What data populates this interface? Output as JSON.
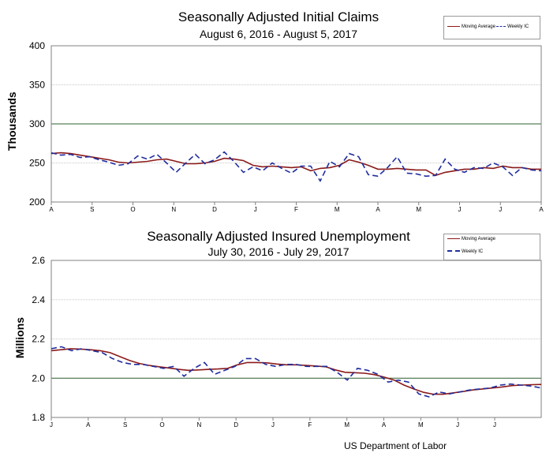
{
  "chart_data": [
    {
      "type": "line",
      "title": "Seasonally Adjusted Initial Claims",
      "subtitle": "August 6, 2016  -  August 5, 2017",
      "ylabel": "Thousands",
      "ylim": [
        200,
        400
      ],
      "yticks": [
        "200",
        "250",
        "300",
        "350",
        "400"
      ],
      "xticks": [
        "A",
        "S",
        "O",
        "N",
        "D",
        "J",
        "F",
        "M",
        "A",
        "M",
        "J",
        "J",
        "A"
      ],
      "legend": {
        "position": "top-right"
      },
      "colors": {
        "moving_average": "#8b1a1a",
        "weekly": "#1f2d9e",
        "grid": "#c8c8c8",
        "ref_line": "#2f5f2f"
      },
      "series": [
        {
          "name": "Moving Average",
          "style": "solid",
          "values": [
            262,
            263,
            262,
            260,
            258,
            256,
            254,
            251,
            250,
            251,
            252,
            254,
            255,
            252,
            249,
            249,
            250,
            252,
            256,
            255,
            253,
            247,
            245,
            246,
            245,
            244,
            245,
            240,
            243,
            244,
            247,
            254,
            251,
            247,
            242,
            242,
            243,
            242,
            241,
            241,
            234,
            238,
            240,
            242,
            242,
            244,
            243,
            246,
            244,
            244,
            242,
            242
          ]
        },
        {
          "name": "Weekly IC",
          "style": "dashed",
          "values": [
            263,
            260,
            261,
            257,
            258,
            254,
            251,
            247,
            249,
            259,
            255,
            261,
            250,
            238,
            250,
            261,
            249,
            254,
            264,
            252,
            238,
            245,
            240,
            250,
            243,
            237,
            246,
            246,
            227,
            252,
            245,
            262,
            258,
            235,
            233,
            244,
            258,
            237,
            236,
            233,
            234,
            255,
            242,
            238,
            244,
            243,
            250,
            245,
            234,
            244,
            241,
            240
          ]
        }
      ]
    },
    {
      "type": "line",
      "title": "Seasonally Adjusted Insured Unemployment",
      "subtitle": "July 30, 2016  -  July 29, 2017",
      "ylabel": "Millions",
      "ylim": [
        1.8,
        2.6
      ],
      "yticks": [
        "1.8",
        "2.0",
        "2.2",
        "2.4",
        "2.6"
      ],
      "xticks": [
        "J",
        "A",
        "S",
        "O",
        "N",
        "D",
        "J",
        "F",
        "M",
        "A",
        "M",
        "J",
        "J"
      ],
      "legend": {
        "position": "top-right"
      },
      "colors": {
        "moving_average": "#8b1a1a",
        "weekly": "#1f2d9e",
        "grid": "#c8c8c8",
        "ref_line": "#2f5f2f"
      },
      "series": [
        {
          "name": "Moving Average",
          "style": "solid",
          "values": [
            2.14,
            2.145,
            2.15,
            2.148,
            2.145,
            2.14,
            2.13,
            2.11,
            2.09,
            2.075,
            2.065,
            2.058,
            2.052,
            2.045,
            2.04,
            2.042,
            2.045,
            2.047,
            2.05,
            2.068,
            2.08,
            2.08,
            2.078,
            2.072,
            2.068,
            2.068,
            2.065,
            2.062,
            2.058,
            2.042,
            2.03,
            2.028,
            2.025,
            2.018,
            2.005,
            1.99,
            1.965,
            1.945,
            1.928,
            1.918,
            1.918,
            1.925,
            1.932,
            1.94,
            1.945,
            1.95,
            1.955,
            1.962,
            1.965,
            1.967,
            1.968
          ]
        },
        {
          "name": "Weekly IC",
          "style": "dashed",
          "values": [
            2.15,
            2.16,
            2.14,
            2.15,
            2.14,
            2.13,
            2.1,
            2.08,
            2.07,
            2.07,
            2.06,
            2.05,
            2.06,
            2.01,
            2.05,
            2.08,
            2.02,
            2.04,
            2.06,
            2.1,
            2.1,
            2.07,
            2.06,
            2.07,
            2.07,
            2.06,
            2.06,
            2.06,
            2.03,
            1.99,
            2.05,
            2.04,
            2.02,
            1.98,
            1.99,
            1.98,
            1.92,
            1.905,
            1.93,
            1.92,
            1.93,
            1.94,
            1.945,
            1.95,
            1.965,
            1.97,
            1.965,
            1.96,
            1.95
          ]
        }
      ]
    }
  ],
  "legend_labels": {
    "moving_average": "Moving Average",
    "weekly": "Weekly IC"
  },
  "footer": "US Department of Labor"
}
